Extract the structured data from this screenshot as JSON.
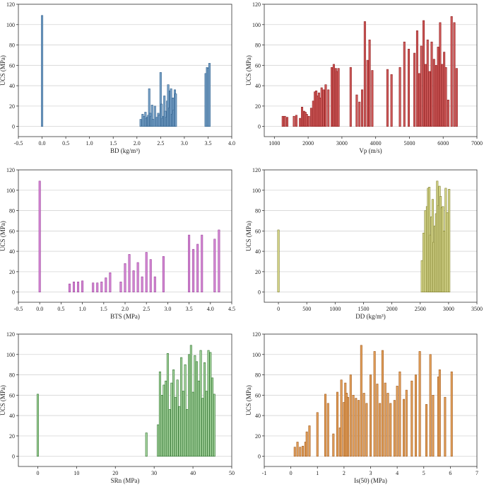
{
  "chart_data": [
    {
      "id": "bd",
      "type": "bar",
      "title": "",
      "xlabel": "BD (kg/m³)",
      "ylabel": "UCS (MPa)",
      "xlim": [
        -0.5,
        4.0
      ],
      "ylim": [
        -10,
        120
      ],
      "xticks": [
        "-0.5",
        "0.0",
        "0.5",
        "1.0",
        "1.5",
        "2.0",
        "2.5",
        "3.0",
        "3.5",
        "4.0"
      ],
      "yticks": [
        "0",
        "20",
        "40",
        "60",
        "80",
        "100",
        "120"
      ],
      "color_fill": "#7aa3c8",
      "color_stroke": "#2e5f8c",
      "x": [
        0.0,
        2.08,
        2.12,
        2.15,
        2.18,
        2.2,
        2.22,
        2.24,
        2.26,
        2.28,
        2.3,
        2.32,
        2.34,
        2.38,
        2.42,
        2.45,
        2.47,
        2.5,
        2.52,
        2.54,
        2.56,
        2.58,
        2.6,
        2.62,
        2.64,
        2.66,
        2.68,
        2.7,
        2.72,
        2.74,
        2.76,
        2.78,
        2.8,
        2.82,
        3.45,
        3.48,
        3.5,
        3.53
      ],
      "values": [
        109,
        7,
        12,
        10,
        14,
        8,
        9,
        11,
        37,
        13,
        10,
        21,
        7,
        20,
        9,
        13,
        11,
        53,
        22,
        8,
        10,
        30,
        15,
        9,
        25,
        41,
        18,
        35,
        37,
        12,
        28,
        16,
        36,
        32,
        52,
        58,
        57,
        62
      ]
    },
    {
      "id": "vp",
      "type": "bar",
      "title": "",
      "xlabel": "Vp (m/s)",
      "ylabel": "UCS (MPa)",
      "xlim": [
        700,
        7000
      ],
      "ylim": [
        -10,
        120
      ],
      "xticks": [
        "1000",
        "2000",
        "3000",
        "4000",
        "5000",
        "6000",
        "7000"
      ],
      "yticks": [
        "0",
        "20",
        "40",
        "60",
        "80",
        "100",
        "120"
      ],
      "color_fill": "#cf5b5b",
      "color_stroke": "#8e1a1a",
      "x": [
        1250,
        1310,
        1380,
        1580,
        1650,
        1760,
        1820,
        1880,
        1920,
        1960,
        2020,
        2090,
        2150,
        2200,
        2240,
        2280,
        2320,
        2360,
        2400,
        2460,
        2520,
        2600,
        2700,
        2760,
        2820,
        2860,
        2900,
        3260,
        3440,
        3520,
        3600,
        3680,
        3760,
        3820,
        3900,
        4350,
        4470,
        4720,
        4850,
        4980,
        5150,
        5230,
        5290,
        5350,
        5420,
        5480,
        5540,
        5600,
        5660,
        5730,
        5790,
        5850,
        5910,
        5970,
        6030,
        6080,
        6150,
        6250,
        6330,
        6400
      ],
      "values": [
        10,
        10,
        9,
        10,
        11,
        8,
        19,
        15,
        14,
        12,
        10,
        18,
        25,
        34,
        35,
        30,
        33,
        28,
        38,
        36,
        41,
        36,
        58,
        61,
        57,
        54,
        57,
        58,
        31,
        24,
        36,
        103,
        65,
        85,
        55,
        56,
        51,
        58,
        83,
        76,
        72,
        94,
        52,
        79,
        104,
        61,
        85,
        54,
        83,
        66,
        60,
        78,
        102,
        61,
        73,
        58,
        26,
        108,
        102,
        57
      ]
    },
    {
      "id": "bts",
      "type": "bar",
      "title": "",
      "xlabel": "BTS (MPa)",
      "ylabel": "UCS (MPa)",
      "xlim": [
        -0.5,
        4.5
      ],
      "ylim": [
        -10,
        120
      ],
      "xticks": [
        "-0.5",
        "0.0",
        "0.5",
        "1.0",
        "1.5",
        "2.0",
        "2.5",
        "3.0",
        "3.5",
        "4.0",
        "4.5"
      ],
      "yticks": [
        "0",
        "20",
        "40",
        "60",
        "80",
        "100",
        "120"
      ],
      "color_fill": "#d68ad6",
      "color_stroke": "#9a3d9a",
      "x": [
        0.0,
        0.7,
        0.8,
        0.9,
        1.0,
        1.25,
        1.35,
        1.45,
        1.55,
        1.65,
        1.9,
        2.0,
        2.1,
        2.2,
        2.3,
        2.4,
        2.5,
        2.6,
        2.7,
        2.9,
        3.5,
        3.6,
        3.7,
        3.8,
        4.1,
        4.2
      ],
      "values": [
        109,
        8,
        10,
        10,
        11,
        9,
        9,
        10,
        14,
        19,
        10,
        28,
        37,
        21,
        29,
        15,
        39,
        32,
        15,
        35,
        56,
        42,
        47,
        56,
        52,
        61
      ]
    },
    {
      "id": "dd",
      "type": "bar",
      "title": "",
      "xlabel": "DD (kg/m³)",
      "ylabel": "UCS (MPa)",
      "xlim": [
        -250,
        3500
      ],
      "ylim": [
        -10,
        120
      ],
      "xticks": [
        "0",
        "500",
        "1000",
        "1500",
        "2000",
        "2500",
        "3000",
        "3500"
      ],
      "yticks": [
        "0",
        "20",
        "40",
        "60",
        "80",
        "100",
        "120"
      ],
      "color_fill": "#d9d98e",
      "color_stroke": "#7d7d2c",
      "x": [
        0,
        2530,
        2560,
        2590,
        2620,
        2640,
        2660,
        2680,
        2700,
        2720,
        2740,
        2760,
        2780,
        2800,
        2820,
        2840,
        2860,
        2880,
        2900,
        2920,
        2950,
        2980,
        3010
      ],
      "values": [
        61,
        31,
        58,
        80,
        84,
        102,
        103,
        56,
        74,
        91,
        49,
        65,
        77,
        109,
        85,
        104,
        94,
        83,
        84,
        60,
        102,
        78,
        101
      ]
    },
    {
      "id": "srn",
      "type": "bar",
      "title": "",
      "xlabel": "SRn (MPa)",
      "ylabel": "UCS (MPa)",
      "xlim": [
        -5,
        50
      ],
      "ylim": [
        -10,
        120
      ],
      "xticks": [
        "0",
        "10",
        "20",
        "30",
        "40",
        "50"
      ],
      "yticks": [
        "0",
        "20",
        "40",
        "60",
        "80",
        "100",
        "120"
      ],
      "color_fill": "#a8d6a0",
      "color_stroke": "#2a6e2a",
      "x": [
        0,
        28,
        31,
        31.5,
        32,
        32.5,
        33,
        33.5,
        34,
        34.5,
        35,
        35.5,
        36,
        36.5,
        37,
        37.5,
        38,
        38.5,
        39,
        39.5,
        40,
        40.5,
        41,
        41.5,
        42,
        42.5,
        43,
        43.5,
        44,
        44.5,
        45,
        45.5
      ],
      "values": [
        61,
        23,
        31,
        83,
        60,
        70,
        74,
        101,
        46,
        72,
        85,
        58,
        75,
        49,
        97,
        64,
        90,
        46,
        100,
        109,
        63,
        99,
        93,
        74,
        104,
        57,
        92,
        64,
        104,
        102,
        77,
        61
      ]
    },
    {
      "id": "is50",
      "type": "bar",
      "title": "",
      "xlabel": "Is(50) (MPa)",
      "ylabel": "UCS (MPa)",
      "xlim": [
        -1,
        7
      ],
      "ylim": [
        -10,
        120
      ],
      "xticks": [
        "-1",
        "0",
        "1",
        "2",
        "3",
        "4",
        "5",
        "6",
        "7"
      ],
      "yticks": [
        "0",
        "20",
        "40",
        "60",
        "80",
        "100",
        "120"
      ],
      "color_fill": "#e3a05a",
      "color_stroke": "#a0581a",
      "x": [
        0.15,
        0.25,
        0.35,
        0.45,
        0.55,
        0.6,
        0.7,
        1.0,
        1.3,
        1.4,
        1.6,
        1.75,
        1.85,
        1.9,
        2.0,
        2.05,
        2.1,
        2.15,
        2.25,
        2.35,
        2.45,
        2.55,
        2.65,
        2.75,
        2.85,
        3.0,
        3.15,
        3.25,
        3.35,
        3.45,
        3.55,
        3.65,
        3.75,
        3.9,
        4.0,
        4.1,
        4.25,
        4.35,
        4.55,
        4.7,
        4.85,
        5.1,
        5.25,
        5.35,
        5.55,
        5.6,
        5.8,
        6.05
      ],
      "values": [
        9,
        14,
        9,
        10,
        14,
        24,
        30,
        43,
        61,
        52,
        22,
        63,
        28,
        75,
        53,
        72,
        62,
        58,
        80,
        60,
        57,
        55,
        109,
        62,
        52,
        80,
        103,
        71,
        52,
        104,
        72,
        62,
        52,
        55,
        69,
        83,
        56,
        65,
        74,
        80,
        103,
        51,
        100,
        60,
        78,
        85,
        58,
        83
      ]
    }
  ]
}
